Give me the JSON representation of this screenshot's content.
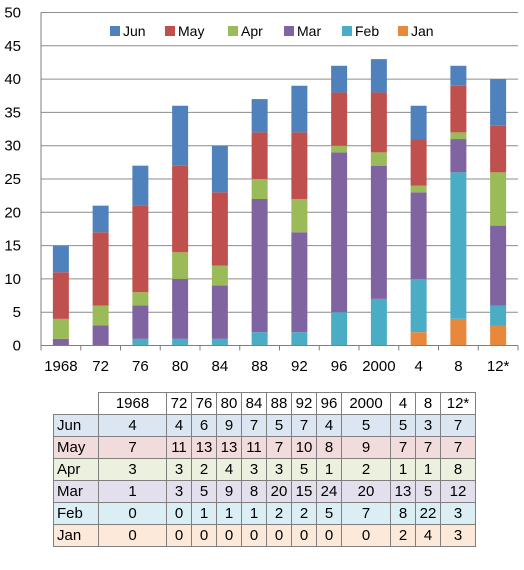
{
  "chart_data": {
    "type": "bar",
    "stacked": true,
    "categories": [
      "1968",
      "72",
      "76",
      "80",
      "84",
      "88",
      "92",
      "96",
      "2000",
      "4",
      "8",
      "12*"
    ],
    "series": [
      {
        "name": "Jan",
        "color": "#e8883a",
        "values": [
          0,
          0,
          0,
          0,
          0,
          0,
          0,
          0,
          0,
          2,
          4,
          3
        ]
      },
      {
        "name": "Feb",
        "color": "#4bacc6",
        "values": [
          0,
          0,
          1,
          1,
          1,
          2,
          2,
          5,
          7,
          8,
          22,
          3
        ]
      },
      {
        "name": "Mar",
        "color": "#8064a2",
        "values": [
          1,
          3,
          5,
          9,
          8,
          20,
          15,
          24,
          20,
          13,
          5,
          12
        ]
      },
      {
        "name": "Apr",
        "color": "#9bbb59",
        "values": [
          3,
          3,
          2,
          4,
          3,
          3,
          5,
          1,
          2,
          1,
          1,
          8
        ]
      },
      {
        "name": "May",
        "color": "#c0504d",
        "values": [
          7,
          11,
          13,
          13,
          11,
          7,
          10,
          8,
          9,
          7,
          7,
          7
        ]
      },
      {
        "name": "Jun",
        "color": "#4f81bd",
        "values": [
          4,
          4,
          6,
          9,
          7,
          5,
          7,
          4,
          5,
          5,
          3,
          7
        ]
      }
    ],
    "yticks": [
      "0",
      "5",
      "10",
      "15",
      "20",
      "25",
      "30",
      "35",
      "40",
      "45",
      "50"
    ],
    "ylim": [
      0,
      50
    ],
    "grid": true,
    "legend": {
      "position": "top",
      "order": [
        "Jun",
        "May",
        "Apr",
        "Mar",
        "Feb",
        "Jan"
      ]
    },
    "table": {
      "row_order": [
        "Jun",
        "May",
        "Apr",
        "Mar",
        "Feb",
        "Jan"
      ],
      "row_colors": {
        "Jun": "#dce6f2",
        "May": "#f2dcdb",
        "Apr": "#ebf1de",
        "Mar": "#e4dfec",
        "Feb": "#daeef3",
        "Jan": "#fde9d9"
      }
    }
  }
}
